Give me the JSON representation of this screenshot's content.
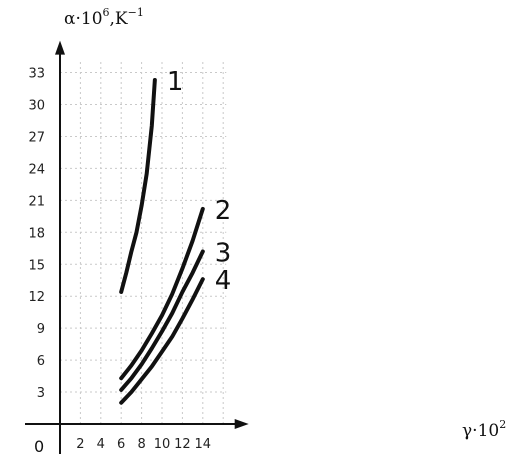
{
  "chart_data": {
    "type": "line",
    "x_axis": {
      "label": "γ·10",
      "label_exponent": "2",
      "ticks": [
        2,
        4,
        6,
        8,
        10,
        12,
        14
      ],
      "range": [
        0,
        18.5
      ]
    },
    "y_axis": {
      "label": "α·10",
      "label_exponent": "6",
      "unit": ",K",
      "unit_exponent": "−1",
      "ticks": [
        3,
        6,
        9,
        12,
        15,
        18,
        21,
        24,
        27,
        30,
        33
      ],
      "range": [
        0,
        36
      ]
    },
    "origin_label": "0",
    "grid": true,
    "series": [
      {
        "name": "1",
        "x": [
          6,
          6.5,
          7,
          7.5,
          8,
          8.5,
          9,
          9.3
        ],
        "y": [
          12.4,
          14.2,
          16.2,
          18.0,
          20.5,
          23.5,
          28.0,
          32.3
        ]
      },
      {
        "name": "2",
        "x": [
          6,
          7,
          8,
          9,
          10,
          11,
          12,
          13,
          14
        ],
        "y": [
          4.3,
          5.5,
          6.9,
          8.5,
          10.2,
          12.2,
          14.6,
          17.2,
          20.2
        ]
      },
      {
        "name": "3",
        "x": [
          6,
          7,
          8,
          9,
          10,
          11,
          12,
          13,
          14
        ],
        "y": [
          3.2,
          4.3,
          5.6,
          7.1,
          8.7,
          10.4,
          12.4,
          14.2,
          16.2
        ]
      },
      {
        "name": "4",
        "x": [
          6,
          7,
          8,
          9,
          10,
          11,
          12,
          13,
          14
        ],
        "y": [
          2.0,
          3.0,
          4.2,
          5.4,
          6.8,
          8.2,
          9.9,
          11.7,
          13.6
        ]
      }
    ]
  }
}
